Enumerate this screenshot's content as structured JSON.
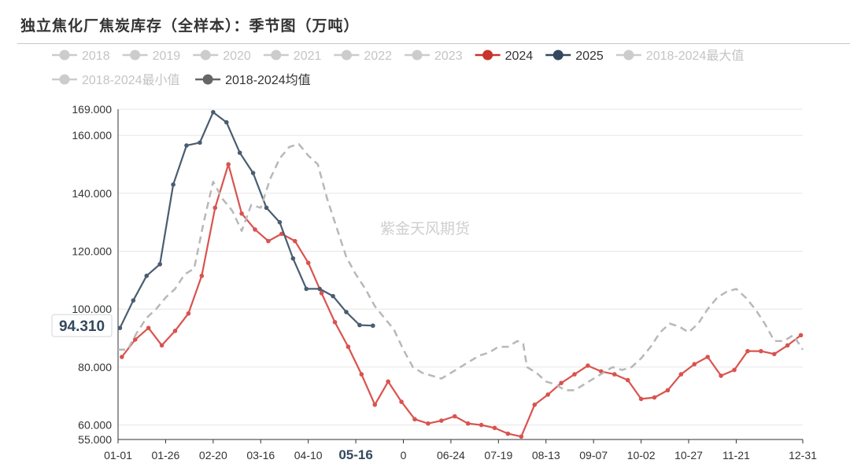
{
  "header": {
    "title": "独立焦化厂焦炭库存（全样本）：季节图（万吨）"
  },
  "chart_data": {
    "type": "line",
    "title": "独立焦化厂焦炭库存（全样本）：季节图（万吨）",
    "watermark": "紫金天风期货",
    "ylim": [
      55,
      169
    ],
    "yticks": [
      {
        "v": 55,
        "label": "55.000"
      },
      {
        "v": 60,
        "label": "60.000"
      },
      {
        "v": 80,
        "label": "80.000"
      },
      {
        "v": 100,
        "label": "100.000"
      },
      {
        "v": 120,
        "label": "120.000"
      },
      {
        "v": 140,
        "label": "140.000"
      },
      {
        "v": 160,
        "label": "160.000"
      },
      {
        "v": 169,
        "label": "169.000"
      }
    ],
    "xticks": [
      {
        "day": 0,
        "label": "01-01"
      },
      {
        "day": 25,
        "label": "01-26"
      },
      {
        "day": 50,
        "label": "02-20"
      },
      {
        "day": 75,
        "label": "03-16"
      },
      {
        "day": 100,
        "label": "04-10"
      },
      {
        "day": 125,
        "label": "05-16",
        "highlight": true
      },
      {
        "day": 150,
        "label": "0"
      },
      {
        "day": 175,
        "label": "06-24"
      },
      {
        "day": 200,
        "label": "07-19"
      },
      {
        "day": 225,
        "label": "08-13"
      },
      {
        "day": 250,
        "label": "09-07"
      },
      {
        "day": 275,
        "label": "10-02"
      },
      {
        "day": 300,
        "label": "10-27"
      },
      {
        "day": 325,
        "label": "11-21"
      },
      {
        "day": 360,
        "label": "12-31"
      }
    ],
    "pointer": {
      "value": 94.31,
      "label": "94.310"
    },
    "legend": [
      {
        "name": "2018",
        "active": false,
        "color": "#cccccc"
      },
      {
        "name": "2019",
        "active": false,
        "color": "#cccccc"
      },
      {
        "name": "2020",
        "active": false,
        "color": "#cccccc"
      },
      {
        "name": "2021",
        "active": false,
        "color": "#cccccc"
      },
      {
        "name": "2022",
        "active": false,
        "color": "#cccccc"
      },
      {
        "name": "2023",
        "active": false,
        "color": "#cccccc"
      },
      {
        "name": "2024",
        "active": true,
        "color": "#c8332c"
      },
      {
        "name": "2025",
        "active": true,
        "color": "#34495e"
      },
      {
        "name": "2018-2024最大值",
        "active": false,
        "color": "#cccccc"
      },
      {
        "name": "2018-2024最小值",
        "active": false,
        "color": "#cccccc"
      },
      {
        "name": "2018-2024均值",
        "active": true,
        "color": "#666666"
      }
    ],
    "series": [
      {
        "name": "2024",
        "color": "#d9534f",
        "style": "solid",
        "markers": true,
        "points": [
          [
            2,
            83.5
          ],
          [
            9,
            89.5
          ],
          [
            16,
            93.5
          ],
          [
            23,
            87.5
          ],
          [
            30,
            92.5
          ],
          [
            37,
            98.5
          ],
          [
            44,
            111.5
          ],
          [
            51,
            135
          ],
          [
            58,
            150
          ],
          [
            65,
            133
          ],
          [
            72,
            127.5
          ],
          [
            79,
            123.5
          ],
          [
            86,
            126
          ],
          [
            93,
            123.5
          ],
          [
            100,
            116
          ],
          [
            107,
            105.5
          ],
          [
            114,
            95.5
          ],
          [
            121,
            87
          ],
          [
            128,
            77.5
          ],
          [
            135,
            67
          ],
          [
            142,
            75
          ],
          [
            149,
            68
          ],
          [
            156,
            62
          ],
          [
            163,
            60.5
          ],
          [
            170,
            61.5
          ],
          [
            177,
            63
          ],
          [
            184,
            60.5
          ],
          [
            191,
            60
          ],
          [
            198,
            59
          ],
          [
            205,
            57
          ],
          [
            212,
            56
          ],
          [
            219,
            67
          ],
          [
            226,
            70.5
          ],
          [
            233,
            74.5
          ],
          [
            240,
            77.5
          ],
          [
            247,
            80.5
          ],
          [
            254,
            78.5
          ],
          [
            261,
            77.5
          ],
          [
            268,
            75.5
          ],
          [
            275,
            69
          ],
          [
            282,
            69.5
          ],
          [
            289,
            72
          ],
          [
            296,
            77.5
          ],
          [
            303,
            81
          ],
          [
            310,
            83.5
          ],
          [
            317,
            77
          ],
          [
            324,
            79
          ],
          [
            331,
            85.5
          ],
          [
            338,
            85.5
          ],
          [
            345,
            84.5
          ],
          [
            352,
            87.5
          ],
          [
            359,
            91
          ]
        ]
      },
      {
        "name": "2025",
        "color": "#4a5d70",
        "style": "solid",
        "markers": true,
        "points": [
          [
            1,
            93.5
          ],
          [
            8,
            103
          ],
          [
            15,
            111.5
          ],
          [
            22,
            115.5
          ],
          [
            29,
            143
          ],
          [
            36,
            156.5
          ],
          [
            43,
            157.5
          ],
          [
            50,
            168
          ],
          [
            57,
            164.5
          ],
          [
            64,
            154
          ],
          [
            71,
            147
          ],
          [
            78,
            135
          ],
          [
            85,
            130
          ],
          [
            92,
            117.5
          ],
          [
            99,
            107
          ],
          [
            106,
            107
          ],
          [
            113,
            104.5
          ],
          [
            120,
            99
          ],
          [
            127,
            94.5
          ],
          [
            134,
            94.3
          ]
        ]
      },
      {
        "name": "2018-2024均值",
        "color": "#b8b8b8",
        "style": "dashed",
        "markers": false,
        "points": [
          [
            0,
            86
          ],
          [
            5,
            86
          ],
          [
            10,
            92
          ],
          [
            15,
            97
          ],
          [
            20,
            100
          ],
          [
            25,
            104
          ],
          [
            30,
            107
          ],
          [
            35,
            112
          ],
          [
            40,
            114
          ],
          [
            45,
            130
          ],
          [
            50,
            144
          ],
          [
            55,
            138
          ],
          [
            60,
            134
          ],
          [
            65,
            127
          ],
          [
            70,
            136
          ],
          [
            75,
            135
          ],
          [
            80,
            145
          ],
          [
            85,
            152
          ],
          [
            90,
            156
          ],
          [
            95,
            157
          ],
          [
            100,
            153
          ],
          [
            105,
            150
          ],
          [
            110,
            138
          ],
          [
            115,
            128
          ],
          [
            120,
            118
          ],
          [
            125,
            112
          ],
          [
            130,
            107
          ],
          [
            135,
            101
          ],
          [
            140,
            97
          ],
          [
            145,
            93
          ],
          [
            150,
            86
          ],
          [
            155,
            80
          ],
          [
            160,
            78
          ],
          [
            165,
            77
          ],
          [
            170,
            76
          ],
          [
            175,
            78
          ],
          [
            180,
            80
          ],
          [
            185,
            82
          ],
          [
            190,
            84
          ],
          [
            195,
            85
          ],
          [
            200,
            87
          ],
          [
            205,
            87
          ],
          [
            210,
            89
          ],
          [
            213,
            88
          ],
          [
            215,
            80
          ],
          [
            220,
            78
          ],
          [
            225,
            75
          ],
          [
            230,
            74
          ],
          [
            235,
            72
          ],
          [
            240,
            72
          ],
          [
            245,
            74
          ],
          [
            250,
            76
          ],
          [
            255,
            78
          ],
          [
            260,
            80
          ],
          [
            265,
            79
          ],
          [
            270,
            80
          ],
          [
            275,
            83
          ],
          [
            280,
            87
          ],
          [
            285,
            92
          ],
          [
            290,
            95
          ],
          [
            295,
            94
          ],
          [
            300,
            92
          ],
          [
            305,
            95
          ],
          [
            310,
            100
          ],
          [
            315,
            104
          ],
          [
            320,
            106
          ],
          [
            325,
            107
          ],
          [
            330,
            104
          ],
          [
            335,
            100
          ],
          [
            340,
            95
          ],
          [
            345,
            89
          ],
          [
            350,
            89
          ],
          [
            355,
            91
          ],
          [
            360,
            86
          ]
        ]
      }
    ]
  }
}
